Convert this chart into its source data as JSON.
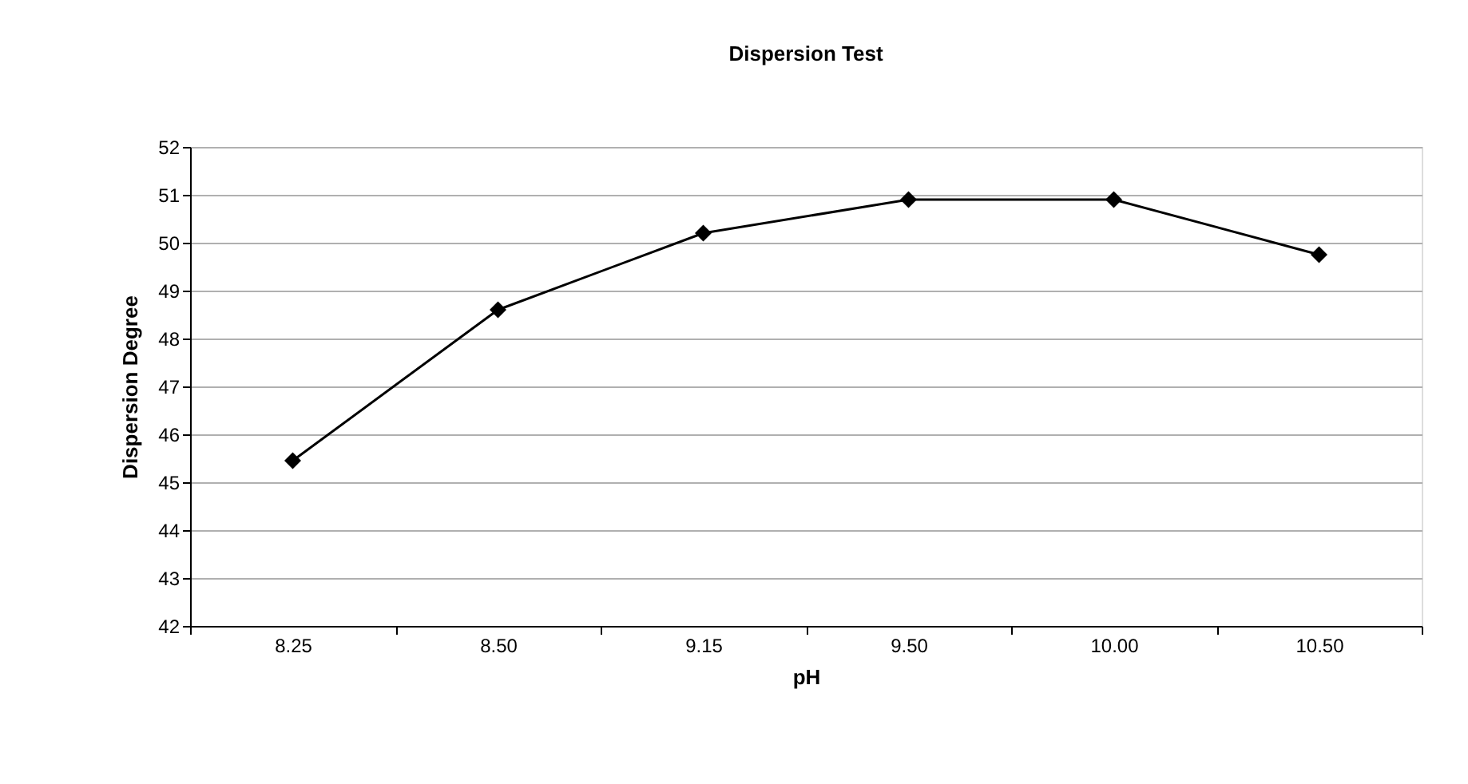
{
  "chart_data": {
    "type": "line",
    "title": "Dispersion Test",
    "xlabel": "pH",
    "ylabel": "Dispersion Degree",
    "categories": [
      "8.25",
      "8.50",
      "9.15",
      "9.50",
      "10.00",
      "10.50"
    ],
    "series": [
      {
        "color": "#000000",
        "values": [
          45.45,
          48.6,
          50.2,
          50.9,
          50.9,
          49.75
        ]
      }
    ],
    "ylim": [
      42,
      52
    ],
    "yticks": [
      42,
      43,
      44,
      45,
      46,
      47,
      48,
      49,
      50,
      51,
      52
    ],
    "grid": "y",
    "marker": "diamond",
    "line_style": "solid"
  }
}
